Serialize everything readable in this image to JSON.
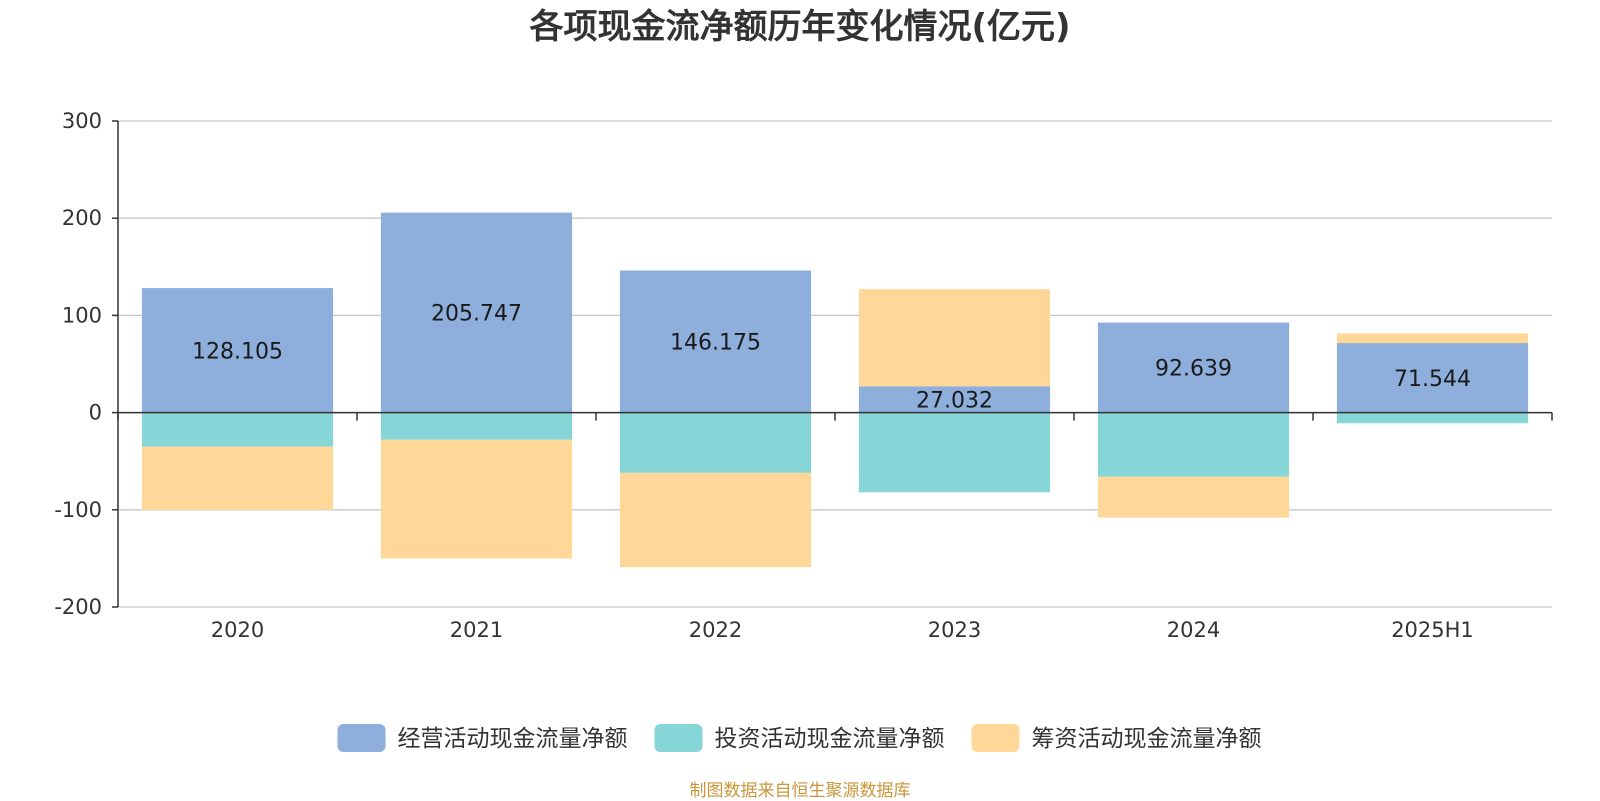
{
  "chart_data": {
    "type": "bar",
    "stacked": true,
    "title": "各项现金流净额历年变化情况(亿元)",
    "categories": [
      "2020",
      "2021",
      "2022",
      "2023",
      "2024",
      "2025H1"
    ],
    "ylim": [
      -200,
      300
    ],
    "yticks": [
      300,
      200,
      100,
      0,
      -100,
      -200
    ],
    "grid": true,
    "legend_position": "bottom",
    "series": [
      {
        "name": "经营活动现金流量净额",
        "color": "#8eaedb",
        "values": [
          128.105,
          205.747,
          146.175,
          27.032,
          92.639,
          71.544
        ],
        "labels": [
          "128.105",
          "205.747",
          "146.175",
          "27.032",
          "92.639",
          "71.544"
        ]
      },
      {
        "name": "投资活动现金流量净额",
        "color": "#86d5d7",
        "values": [
          -35,
          -28,
          -62,
          -82,
          -66,
          -11
        ]
      },
      {
        "name": "筹资活动现金流量净额",
        "color": "#ffd899",
        "values": [
          -65,
          -122,
          -97,
          100,
          -42,
          10
        ]
      }
    ]
  },
  "source_note": "制图数据来自恒生聚源数据库"
}
